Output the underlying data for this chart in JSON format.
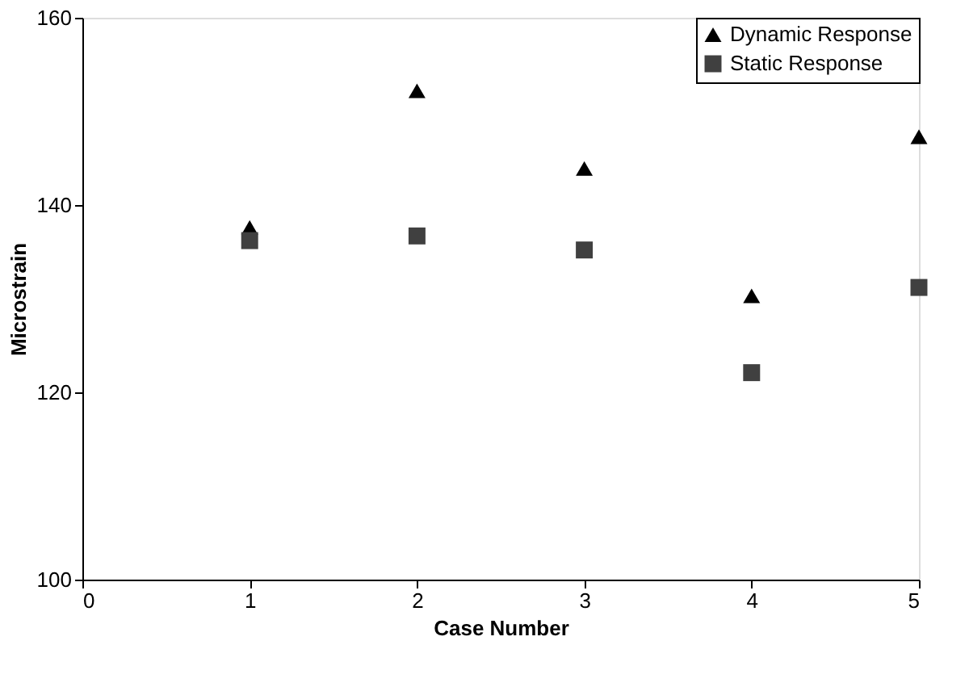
{
  "chart_data": {
    "type": "scatter",
    "xlabel": "Case Number",
    "ylabel": "Microstrain",
    "x": [
      1,
      2,
      3,
      4,
      5
    ],
    "series": [
      {
        "name": "Dynamic Response",
        "color": "#000000",
        "marker": "triangle",
        "values": [
          137.6,
          152.2,
          143.9,
          130.3,
          147.3
        ]
      },
      {
        "name": "Static Response",
        "color": "#404040",
        "marker": "square",
        "values": [
          136.2,
          136.7,
          135.2,
          122.1,
          131.2
        ]
      }
    ],
    "xlim": [
      0,
      5
    ],
    "xticks": [
      0,
      1,
      2,
      3,
      4,
      5
    ],
    "ylim": [
      100,
      160
    ],
    "yticks": [
      100,
      120,
      140,
      160
    ],
    "grid": false,
    "legend": "top right"
  }
}
